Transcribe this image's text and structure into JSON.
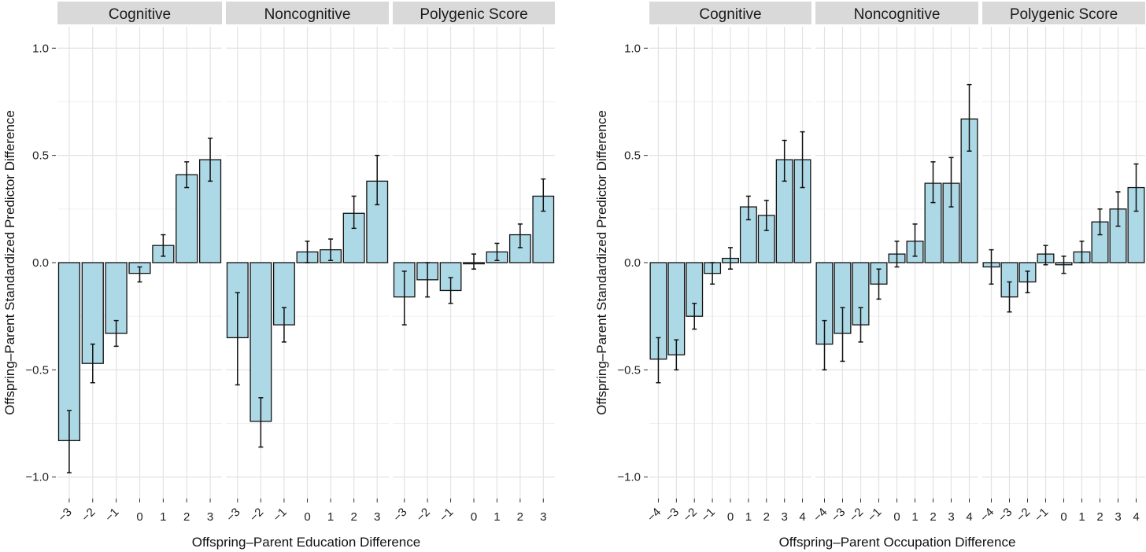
{
  "chart_data": [
    {
      "type": "bar",
      "xlabel": "Offspring–Parent Education Difference",
      "ylabel": "Offspring–Parent Standardized Predictor Difference",
      "ylim": [
        -1.1,
        1.1
      ],
      "yticks": [
        -1.0,
        -0.5,
        0.0,
        0.5,
        1.0
      ],
      "ytick_labels": [
        "−1.0",
        "−0.5",
        "0.0",
        "0.5",
        "1.0"
      ],
      "categories": [
        "−3",
        "−2",
        "−1",
        "0",
        "1",
        "2",
        "3"
      ],
      "x": [
        -3,
        -2,
        -1,
        0,
        1,
        2,
        3
      ],
      "grid": true,
      "bar_color": "#add8e6",
      "facets": [
        {
          "name": "Cognitive",
          "values": [
            -0.83,
            -0.47,
            -0.33,
            -0.05,
            0.08,
            0.41,
            0.48
          ],
          "error_low": [
            -0.98,
            -0.56,
            -0.39,
            -0.09,
            0.03,
            0.35,
            0.38
          ],
          "error_high": [
            -0.69,
            -0.38,
            -0.27,
            -0.02,
            0.13,
            0.47,
            0.58
          ]
        },
        {
          "name": "Noncognitive",
          "values": [
            -0.35,
            -0.74,
            -0.29,
            0.05,
            0.06,
            0.23,
            0.38
          ],
          "error_low": [
            -0.57,
            -0.86,
            -0.37,
            0.0,
            0.01,
            0.16,
            0.27
          ],
          "error_high": [
            -0.14,
            -0.63,
            -0.21,
            0.1,
            0.11,
            0.31,
            0.5
          ]
        },
        {
          "name": "Polygenic Score",
          "values": [
            -0.16,
            -0.08,
            -0.13,
            0.0,
            0.05,
            0.13,
            0.31
          ],
          "error_low": [
            -0.29,
            -0.16,
            -0.19,
            -0.03,
            0.01,
            0.07,
            0.24
          ],
          "error_high": [
            -0.04,
            0.0,
            -0.07,
            0.04,
            0.09,
            0.18,
            0.39
          ]
        }
      ]
    },
    {
      "type": "bar",
      "xlabel": "Offspring–Parent Occupation Difference",
      "ylabel": "Offspring–Parent Standardized Predictor Difference",
      "ylim": [
        -1.1,
        1.1
      ],
      "yticks": [
        -1.0,
        -0.5,
        0.0,
        0.5,
        1.0
      ],
      "ytick_labels": [
        "−1.0",
        "−0.5",
        "0.0",
        "0.5",
        "1.0"
      ],
      "categories": [
        "−4",
        "−3",
        "−2",
        "−1",
        "0",
        "1",
        "2",
        "3",
        "4"
      ],
      "x": [
        -4,
        -3,
        -2,
        -1,
        0,
        1,
        2,
        3,
        4
      ],
      "grid": true,
      "bar_color": "#add8e6",
      "facets": [
        {
          "name": "Cognitive",
          "values": [
            -0.45,
            -0.43,
            -0.25,
            -0.05,
            0.02,
            0.26,
            0.22,
            0.48,
            0.48
          ],
          "error_low": [
            -0.56,
            -0.5,
            -0.31,
            -0.1,
            -0.03,
            0.2,
            0.15,
            0.38,
            0.35
          ],
          "error_high": [
            -0.35,
            -0.36,
            -0.19,
            0.0,
            0.07,
            0.31,
            0.29,
            0.57,
            0.61
          ]
        },
        {
          "name": "Noncognitive",
          "values": [
            -0.38,
            -0.33,
            -0.29,
            -0.1,
            0.04,
            0.1,
            0.37,
            0.37,
            0.67
          ],
          "error_low": [
            -0.5,
            -0.46,
            -0.37,
            -0.17,
            -0.02,
            0.03,
            0.28,
            0.26,
            0.52
          ],
          "error_high": [
            -0.27,
            -0.21,
            -0.21,
            -0.03,
            0.1,
            0.18,
            0.47,
            0.49,
            0.83
          ]
        },
        {
          "name": "Polygenic Score",
          "values": [
            -0.02,
            -0.16,
            -0.09,
            0.04,
            -0.01,
            0.05,
            0.19,
            0.25,
            0.35
          ],
          "error_low": [
            -0.1,
            -0.23,
            -0.14,
            -0.01,
            -0.05,
            0.0,
            0.13,
            0.17,
            0.24
          ],
          "error_high": [
            0.06,
            -0.09,
            -0.04,
            0.08,
            0.03,
            0.1,
            0.25,
            0.33,
            0.46
          ]
        }
      ]
    }
  ]
}
